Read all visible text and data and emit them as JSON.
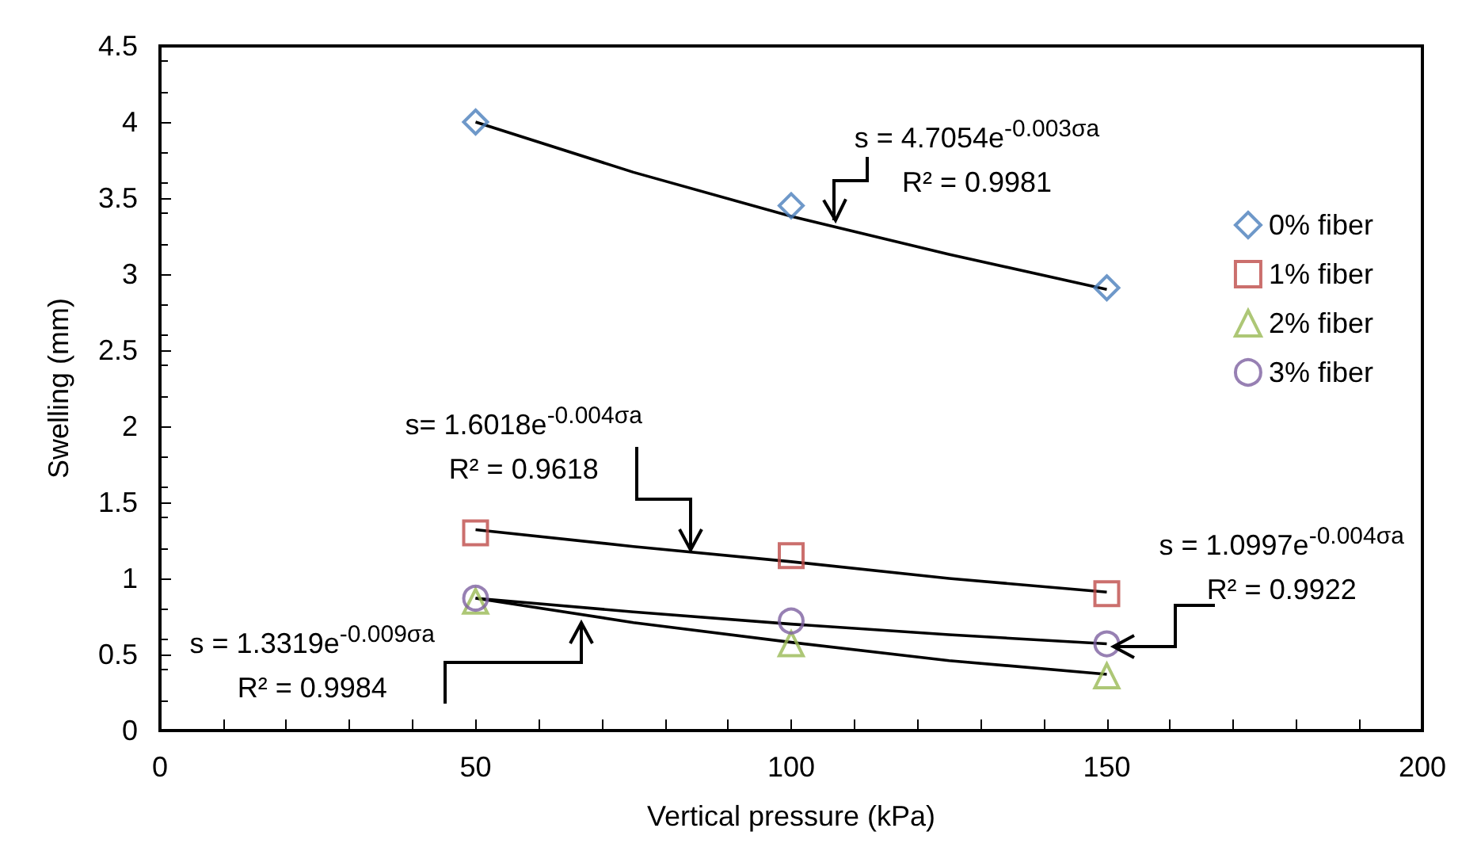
{
  "chart_data": {
    "type": "scatter",
    "xlabel": "Vertical pressure (kPa)",
    "ylabel": "Swelling (mm)",
    "xlim": [
      0,
      200
    ],
    "xticks": [
      0,
      50,
      100,
      150,
      200
    ],
    "ylim": [
      0,
      4.5
    ],
    "yticks": [
      0,
      0.5,
      1,
      1.5,
      2,
      2.5,
      3,
      3.5,
      4,
      4.5
    ],
    "grid": false,
    "legend": "right",
    "series": [
      {
        "name": "0% fiber",
        "color": "#4a7ebb",
        "marker": "diamond",
        "x": [
          50,
          100,
          150
        ],
        "values": [
          4.0,
          3.45,
          2.91
        ]
      },
      {
        "name": "1% fiber",
        "color": "#be4b48",
        "marker": "square",
        "x": [
          50,
          100,
          150
        ],
        "values": [
          1.3,
          1.15,
          0.9
        ]
      },
      {
        "name": "2% fiber",
        "color": "#98b954",
        "marker": "triangle",
        "x": [
          50,
          100,
          150
        ],
        "values": [
          0.85,
          0.57,
          0.36
        ]
      },
      {
        "name": "3% fiber",
        "color": "#7d60a0",
        "marker": "circle",
        "x": [
          50,
          100,
          150
        ],
        "values": [
          0.87,
          0.72,
          0.57
        ]
      },
      {
        "type": "line",
        "color": "#000000",
        "marker": "none",
        "x": [
          50,
          75,
          100,
          125,
          150
        ],
        "values": [
          4.0,
          3.67,
          3.38,
          3.13,
          2.9
        ]
      },
      {
        "type": "line",
        "color": "#000000",
        "marker": "none",
        "x": [
          50,
          75,
          100,
          125,
          150
        ],
        "values": [
          1.32,
          1.21,
          1.11,
          1.0,
          0.91
        ]
      },
      {
        "type": "line",
        "color": "#000000",
        "marker": "none",
        "x": [
          50,
          75,
          100,
          125,
          150
        ],
        "values": [
          0.87,
          0.71,
          0.58,
          0.46,
          0.37
        ]
      },
      {
        "type": "line",
        "color": "#000000",
        "marker": "none",
        "x": [
          50,
          75,
          100,
          125,
          150
        ],
        "values": [
          0.87,
          0.78,
          0.7,
          0.63,
          0.57
        ]
      }
    ],
    "annotations": [
      {
        "text": "s = 4.7054e$^{-0.003σa}$\nR² = 0.9981",
        "x": 107,
        "y": 3.35
      },
      {
        "text": "s= 1.6018e$^{-0.004σa}$\nR² = 0.9618",
        "x": 84,
        "y": 1.19
      },
      {
        "text": "s = 1.3319e$^{-0.009σa}$\nR² = 0.9984",
        "x": 66.7,
        "y": 0.71
      },
      {
        "text": "s = 1.0997e$^{-0.004σa}$\nR² = 0.9922",
        "x": 151,
        "y": 0.55
      }
    ]
  }
}
